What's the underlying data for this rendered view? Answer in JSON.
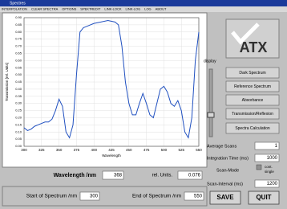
{
  "window": {
    "title": "Spectres",
    "menu": [
      "INTERPOLATION",
      "CLEAR SPECTRA",
      "OPTIONS",
      "SPEKTREDIT",
      "LINK-LOCK",
      "LINK-LOG",
      "LOG",
      "ABOUT"
    ]
  },
  "chart_data": {
    "type": "line",
    "x_label": "Wavelength",
    "y_label": "Transmission [rel. Units]",
    "x": [
      300,
      305,
      310,
      315,
      320,
      325,
      330,
      335,
      340,
      345,
      350,
      355,
      360,
      365,
      370,
      375,
      380,
      385,
      390,
      400,
      410,
      420,
      430,
      435,
      440,
      445,
      450,
      455,
      460,
      465,
      470,
      475,
      480,
      485,
      490,
      495,
      500,
      505,
      510,
      515,
      520,
      525,
      530,
      535,
      540,
      545,
      550
    ],
    "values": [
      0.13,
      0.11,
      0.12,
      0.14,
      0.15,
      0.16,
      0.17,
      0.17,
      0.19,
      0.25,
      0.33,
      0.28,
      0.1,
      0.06,
      0.15,
      0.5,
      0.8,
      0.83,
      0.84,
      0.86,
      0.87,
      0.88,
      0.87,
      0.85,
      0.7,
      0.45,
      0.3,
      0.22,
      0.22,
      0.3,
      0.37,
      0.3,
      0.22,
      0.2,
      0.3,
      0.4,
      0.42,
      0.38,
      0.3,
      0.28,
      0.32,
      0.25,
      0.1,
      0.06,
      0.2,
      0.6,
      0.8
    ],
    "color": "#2050c0",
    "xlim": [
      300,
      550
    ],
    "xticks": [
      300,
      325,
      350,
      375,
      400,
      425,
      450,
      475,
      500,
      525,
      550
    ],
    "ylim": [
      0,
      0.9
    ],
    "yticks": [
      {
        "value": 0,
        "label": "0.00"
      },
      {
        "value": 0.05,
        "label": "0.05"
      },
      {
        "value": 0.1,
        "label": "0.10"
      },
      {
        "value": 0.15,
        "label": "0.15"
      },
      {
        "value": 0.2,
        "label": "0.20"
      },
      {
        "value": 0.25,
        "label": "0.25"
      },
      {
        "value": 0.3,
        "label": "0.30"
      },
      {
        "value": 0.35,
        "label": "0.35"
      },
      {
        "value": 0.4,
        "label": "0.40"
      },
      {
        "value": 0.45,
        "label": "0.45"
      },
      {
        "value": 0.5,
        "label": "0.50"
      },
      {
        "value": 0.55,
        "label": "0.55"
      },
      {
        "value": 0.6,
        "label": "0.60"
      },
      {
        "value": 0.65,
        "label": "0.65"
      },
      {
        "value": 0.7,
        "label": "0.70"
      },
      {
        "value": 0.75,
        "label": "0.75"
      },
      {
        "value": 0.8,
        "label": "0.80"
      },
      {
        "value": 0.85,
        "label": "0.85"
      },
      {
        "value": 0.9,
        "label": "0.90"
      }
    ],
    "grid": true
  },
  "readout": {
    "wavelength_label": "Wavelength /nm",
    "wavelength": "368",
    "units_label": "rel. Units.",
    "units": "0.076"
  },
  "range": {
    "start_label": "Start of Spectrum /nm",
    "start": "300",
    "end_label": "End of Spectrum /nm",
    "end": "550"
  },
  "panel": {
    "logo": "ATX",
    "display_label": "display",
    "buttons": [
      "Dark Spectrum",
      "Reference Spectrum",
      "Absorbance",
      "Transmission/Reflexion",
      "Spectra Calculation"
    ],
    "average_label": "Average Scans",
    "average": "1",
    "integration_label": "Integration Time (ms)",
    "integration": "1000",
    "mode_label": "Scan-Mode",
    "mode_options": [
      "cont.",
      "single"
    ],
    "interval_label": "Scan-Interval (ms)",
    "interval": "1200",
    "save": "SAVE",
    "quit": "QUIT"
  }
}
